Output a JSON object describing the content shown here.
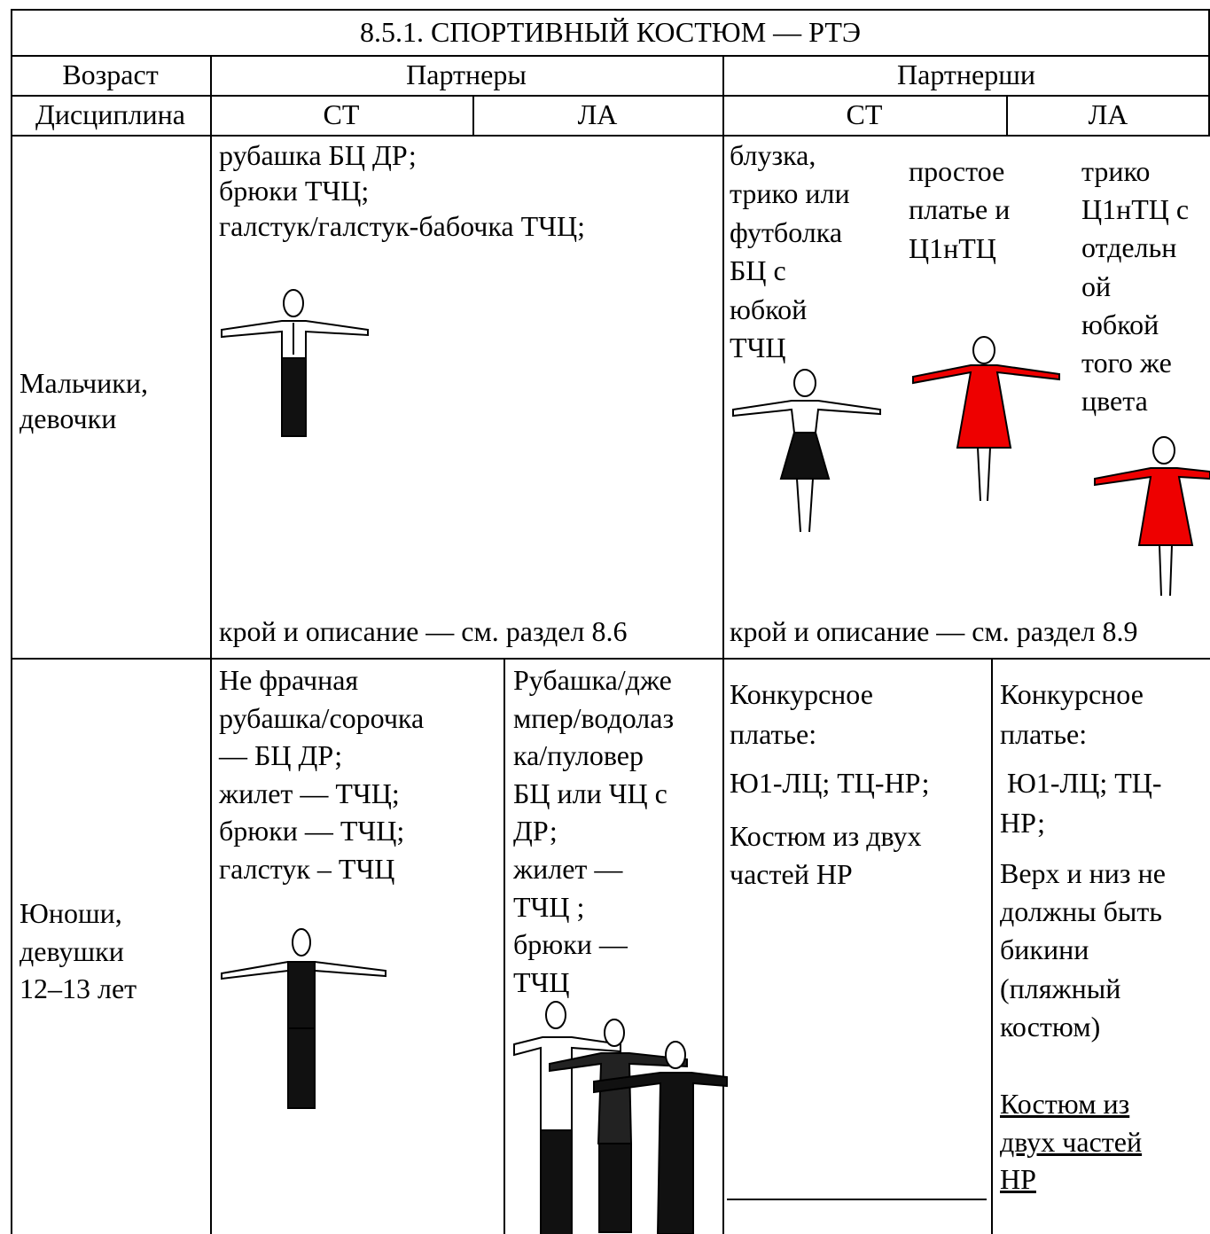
{
  "title": "8.5.1. СПОРТИВНЫЙ КОСТЮМ — РТЭ",
  "header": {
    "age": "Возраст",
    "partners": "Партнеры",
    "partnerships": "Партнерши"
  },
  "subheader": {
    "discipline": "Дисциплина",
    "partners_st": "СТ",
    "partners_la": "ЛА",
    "partnerships_st": "СТ",
    "partnerships_la": "ЛА"
  },
  "rows": [
    {
      "age_group": [
        "Мальчики,",
        "девочки"
      ],
      "partners": [
        "рубашка БЦ ДР;",
        "брюки ТЧЦ;",
        "галстук/галстук-бабочка ТЧЦ;"
      ],
      "partners_note": "крой и описание — см. раздел 8.6",
      "partnerships_st_1": [
        "блузка,",
        "трико или",
        "футболка",
        "БЦ с",
        "юбкой",
        "ТЧЦ"
      ],
      "partnerships_st_2": [
        "простое",
        "платье и",
        "Ц1нТЦ"
      ],
      "partnerships_la": [
        "трико",
        "Ц1нТЦ с",
        "отдельн",
        "ой",
        "юбкой",
        "того же",
        "цвета"
      ],
      "partnerships_note": "крой и описание — см. раздел 8.9"
    },
    {
      "age_group": [
        "Юноши,",
        "девушки",
        "12–13 лет"
      ],
      "partners_st": [
        "Не фрачная",
        "рубашка/сорочка",
        "— БЦ ДР;",
        "жилет — ТЧЦ;",
        "брюки — ТЧЦ;",
        "галстук – ТЧЦ"
      ],
      "partners_la": [
        "Рубашка/дже",
        "мпер/водолаз",
        "ка/пуловер",
        "БЦ или ЧЦ с",
        "ДР;",
        "жилет —",
        "ТЧЦ ;",
        "брюки —",
        "ТЧЦ"
      ],
      "partnerships_st": [
        [
          "Конкурсное",
          "платье:"
        ],
        [
          "Ю1-ЛЦ; ТЦ-НР;"
        ],
        [
          "Костюм из двух",
          "частей НР"
        ]
      ],
      "partnerships_la": [
        [
          "Конкурсное",
          "платье:"
        ],
        [
          " Ю1-ЛЦ; ТЦ-",
          "НР;"
        ],
        [
          "Верх и низ не",
          "должны быть",
          "бикини",
          "(пляжный",
          "костюм)"
        ],
        [
          "Костюм из",
          "двух частей",
          "НР"
        ]
      ]
    }
  ]
}
